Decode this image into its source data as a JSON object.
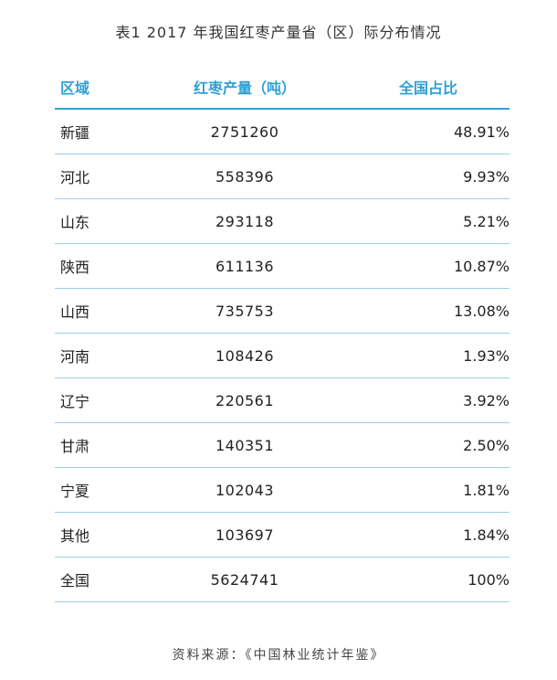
{
  "title": "表1  2017 年我国红枣产量省（区）际分布情况",
  "headers": {
    "region": "区域",
    "output": "红枣产量（吨）",
    "share": "全国占比"
  },
  "rows": [
    {
      "region": "新疆",
      "output": "2751260",
      "share": "48.91%"
    },
    {
      "region": "河北",
      "output": "558396",
      "share": "9.93%"
    },
    {
      "region": "山东",
      "output": "293118",
      "share": "5.21%"
    },
    {
      "region": "陕西",
      "output": "611136",
      "share": "10.87%"
    },
    {
      "region": "山西",
      "output": "735753",
      "share": "13.08%"
    },
    {
      "region": "河南",
      "output": "108426",
      "share": "1.93%"
    },
    {
      "region": "辽宁",
      "output": "220561",
      "share": "3.92%"
    },
    {
      "region": "甘肃",
      "output": "140351",
      "share": "2.50%"
    },
    {
      "region": "宁夏",
      "output": "102043",
      "share": "1.81%"
    },
    {
      "region": "其他",
      "output": "103697",
      "share": "1.84%"
    },
    {
      "region": "全国",
      "output": "5624741",
      "share": "100%"
    }
  ],
  "source": "资料来源：《中国林业统计年鉴》",
  "colors": {
    "accent": "#2fa0d4",
    "divider": "#9ccfe6"
  }
}
